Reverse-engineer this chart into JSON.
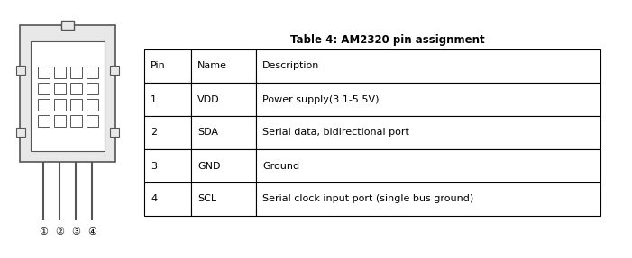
{
  "title": "Table 4: AM2320 pin assignment",
  "col_headers": [
    "Pin",
    "Name",
    "Description"
  ],
  "rows": [
    [
      "1",
      "VDD",
      "Power supply(3.1-5.5V)"
    ],
    [
      "2",
      "SDA",
      "Serial data, bidirectional port"
    ],
    [
      "3",
      "GND",
      "Ground"
    ],
    [
      "4",
      "SCL",
      "Serial clock input port (single bus ground)"
    ]
  ],
  "bg_color": "#ffffff",
  "border_color": "#000000",
  "title_fontsize": 8.5,
  "body_fontsize": 8,
  "pin_labels": [
    "①",
    "②",
    "③",
    "④"
  ],
  "body_color": "#e8e8e8",
  "inner_color": "#f5f5f5"
}
